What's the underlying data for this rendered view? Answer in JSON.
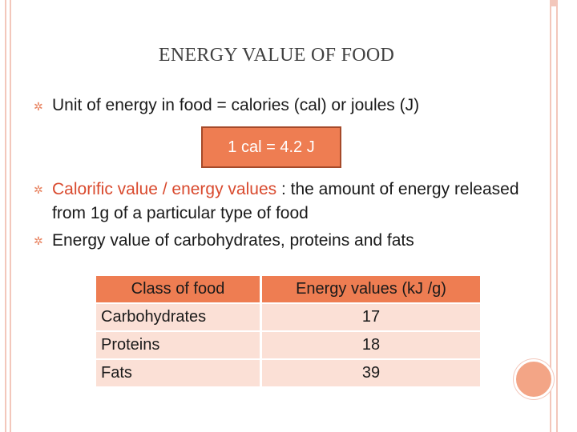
{
  "slide": {
    "title": "ENERGY VALUE OF FOOD",
    "bullets": [
      {
        "text": "Unit of energy in food = calories (cal) or joules (J)"
      },
      {
        "highlight": "Calorific value / energy values",
        "rest": " : the amount of energy released from 1g of a particular type of food"
      },
      {
        "text": "Energy value of carbohydrates, proteins and fats"
      }
    ],
    "formula": "1 cal = 4.2 J"
  },
  "table": {
    "headers": [
      "Class of food",
      "Energy values (kJ /g)"
    ],
    "rows": [
      [
        "Carbohydrates",
        "17"
      ],
      [
        "Proteins",
        "18"
      ],
      [
        "Fats",
        "39"
      ]
    ]
  },
  "colors": {
    "accent": "#ee7d52",
    "highlight_text": "#d94a2e",
    "row_fill": "#fbe0d6",
    "frame": "#f3c7bb"
  },
  "icons": {
    "bullet": "gear-bullet-icon"
  }
}
